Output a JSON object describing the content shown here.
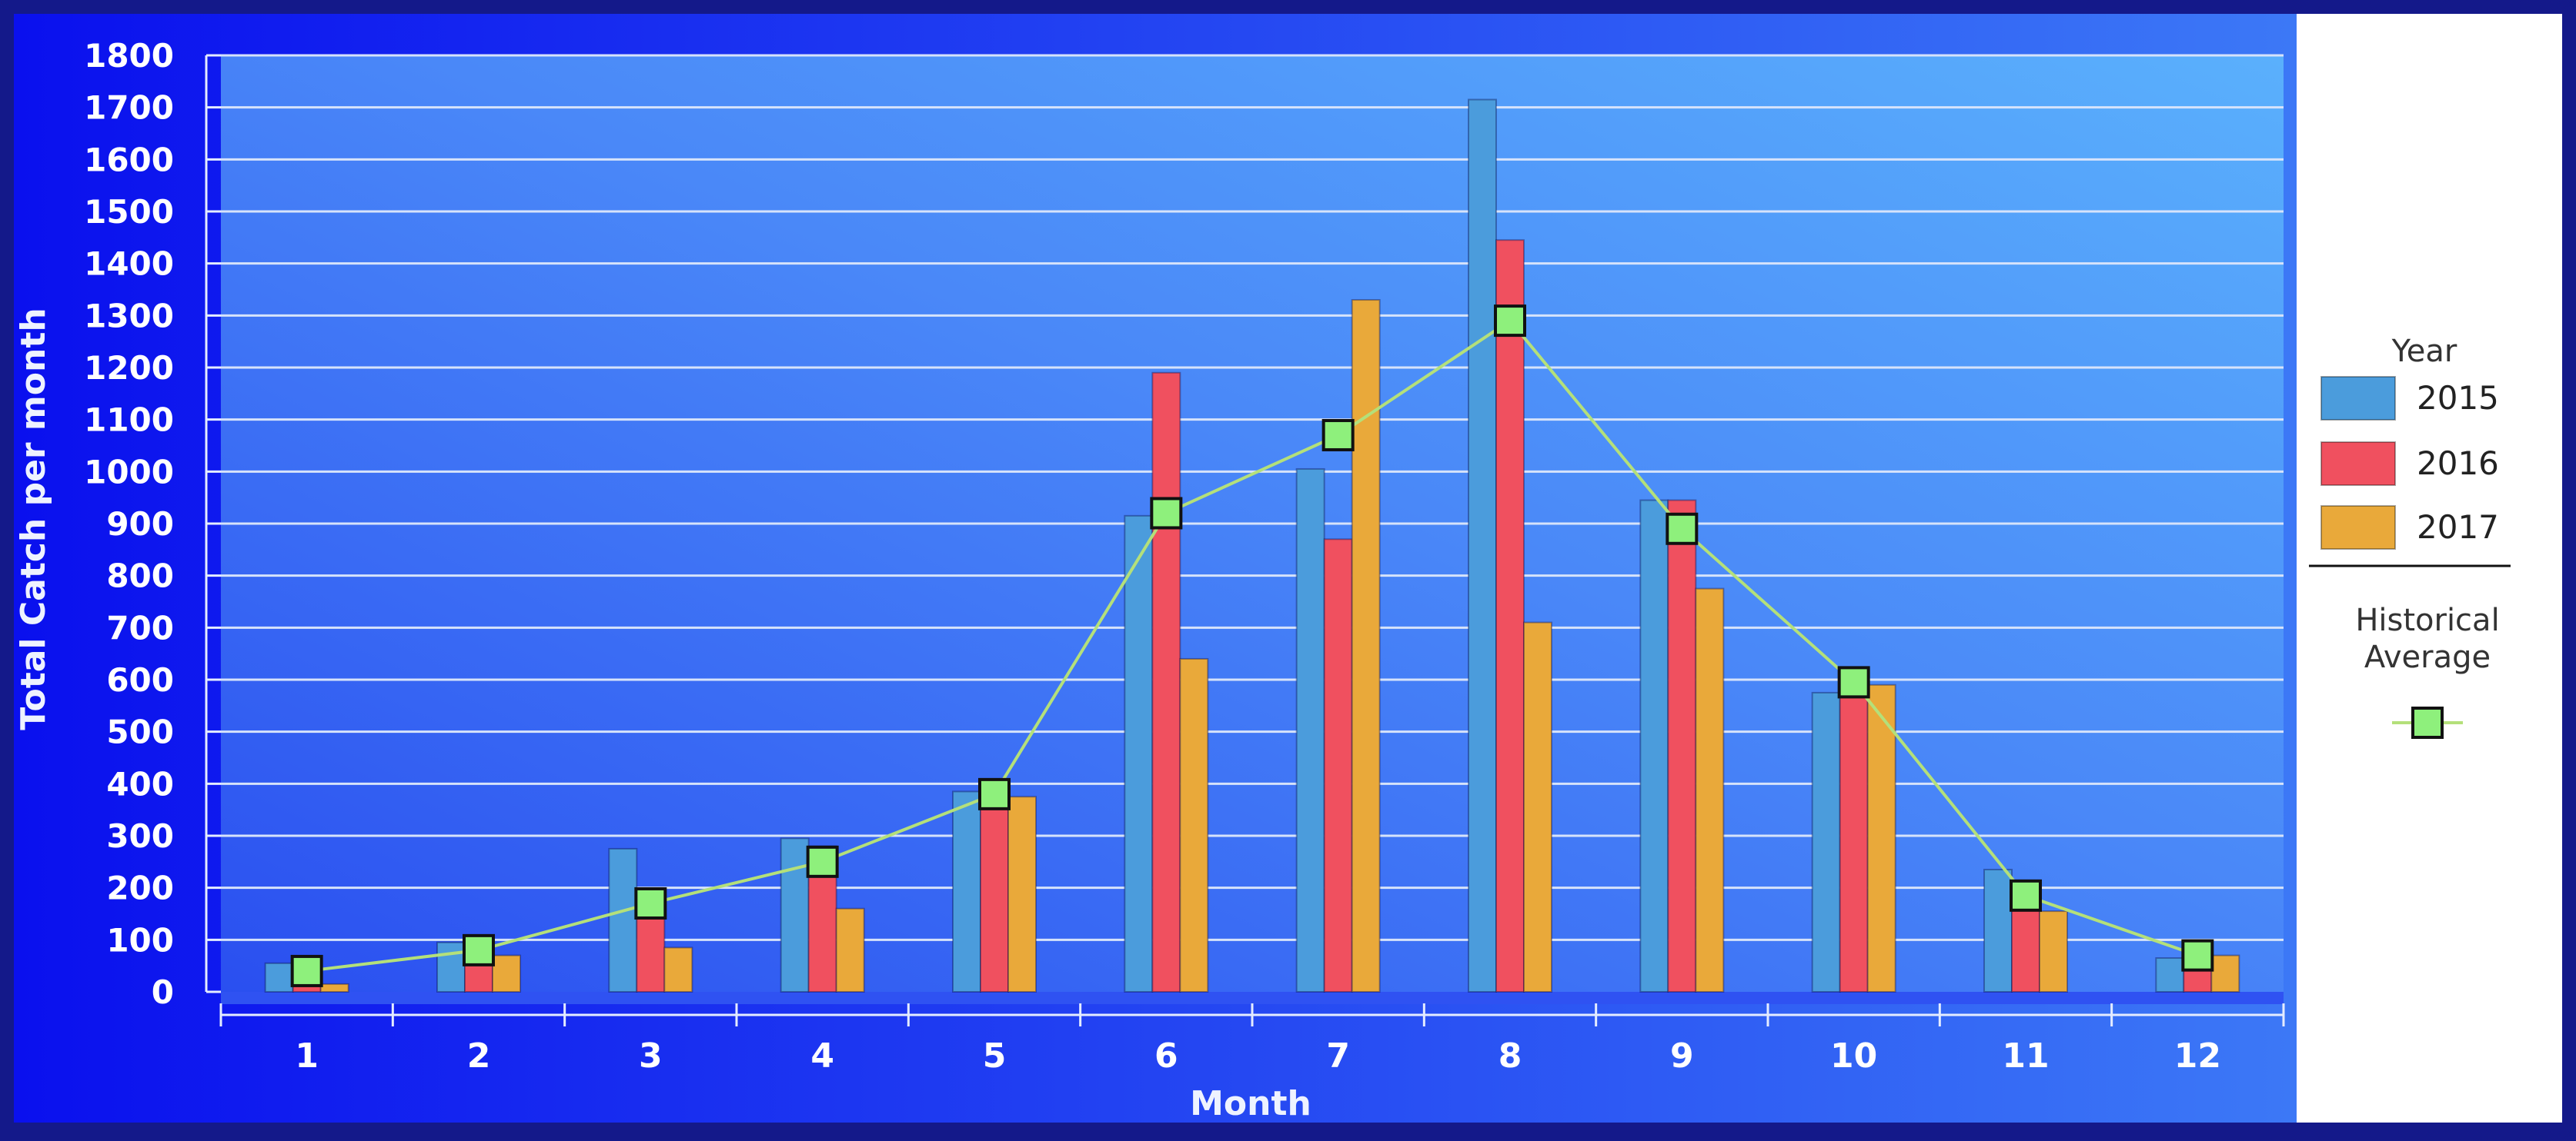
{
  "chart_data": {
    "type": "bar",
    "xlabel": "Month",
    "ylabel": "Total Catch per month",
    "ylim": [
      0,
      1800
    ],
    "yticks": [
      0,
      100,
      200,
      300,
      400,
      500,
      600,
      700,
      800,
      900,
      1000,
      1100,
      1200,
      1300,
      1400,
      1500,
      1600,
      1700,
      1800
    ],
    "categories": [
      "1",
      "2",
      "3",
      "4",
      "5",
      "6",
      "7",
      "8",
      "9",
      "10",
      "11",
      "12"
    ],
    "series": [
      {
        "name": "2015",
        "color": "#4b9cdc",
        "values": [
          55,
          95,
          275,
          295,
          385,
          915,
          1005,
          1715,
          945,
          575,
          235,
          65
        ]
      },
      {
        "name": "2016",
        "color": "#f0505f",
        "values": [
          15,
          55,
          150,
          280,
          380,
          1190,
          870,
          1445,
          945,
          590,
          175,
          45
        ]
      },
      {
        "name": "2017",
        "color": "#e9a93a",
        "values": [
          15,
          70,
          85,
          160,
          375,
          640,
          1330,
          710,
          775,
          590,
          155,
          70
        ]
      }
    ],
    "line": {
      "name": "Historical Average",
      "color": "#b4e07a",
      "marker_color": "#8ef07c",
      "values": [
        40,
        80,
        170,
        250,
        380,
        920,
        1070,
        1290,
        890,
        595,
        185,
        70
      ]
    },
    "legend": {
      "title": "Year",
      "line_label": "Historical Average",
      "position": "right"
    },
    "grid": true
  }
}
